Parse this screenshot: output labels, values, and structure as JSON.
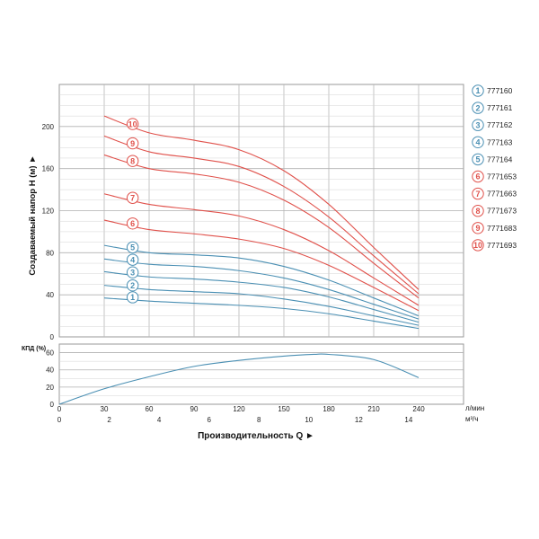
{
  "chart_data": [
    {
      "type": "line",
      "ylabel": "Создаваемый напор H (м) ►",
      "yticks": [
        0,
        40,
        80,
        120,
        160,
        200
      ],
      "ylim": [
        0,
        240
      ],
      "xlim": [
        0,
        270
      ],
      "x_gridlines": [
        30,
        60,
        90,
        120,
        150,
        180,
        210,
        240
      ],
      "grid": true,
      "colors": {
        "blue": "#4a8fb3",
        "red": "#e0504a"
      },
      "series": [
        {
          "name": "777160",
          "marker": "1",
          "color": "#4a8fb3",
          "x": [
            30,
            60,
            90,
            120,
            150,
            180,
            210,
            240
          ],
          "y": [
            37,
            34,
            32,
            30,
            27,
            22,
            15,
            8
          ]
        },
        {
          "name": "777161",
          "marker": "2",
          "color": "#4a8fb3",
          "x": [
            30,
            60,
            90,
            120,
            150,
            180,
            210,
            240
          ],
          "y": [
            49,
            45,
            43,
            41,
            36,
            29,
            20,
            11
          ]
        },
        {
          "name": "777162",
          "marker": "3",
          "color": "#4a8fb3",
          "x": [
            30,
            60,
            90,
            120,
            150,
            180,
            210,
            240
          ],
          "y": [
            62,
            57,
            55,
            52,
            47,
            38,
            26,
            14
          ]
        },
        {
          "name": "777163",
          "marker": "4",
          "color": "#4a8fb3",
          "x": [
            30,
            60,
            90,
            120,
            150,
            180,
            210,
            240
          ],
          "y": [
            74,
            69,
            67,
            63,
            56,
            45,
            31,
            17
          ]
        },
        {
          "name": "777164",
          "marker": "5",
          "color": "#4a8fb3",
          "x": [
            30,
            60,
            90,
            120,
            150,
            180,
            210,
            240
          ],
          "y": [
            87,
            80,
            78,
            75,
            67,
            54,
            37,
            20
          ]
        },
        {
          "name": "7771653",
          "marker": "6",
          "color": "#e0504a",
          "x": [
            30,
            60,
            90,
            120,
            150,
            180,
            210,
            240
          ],
          "y": [
            111,
            102,
            98,
            93,
            84,
            68,
            47,
            25
          ]
        },
        {
          "name": "7771663",
          "marker": "7",
          "color": "#e0504a",
          "x": [
            30,
            60,
            90,
            120,
            150,
            180,
            210,
            240
          ],
          "y": [
            136,
            126,
            121,
            115,
            102,
            82,
            56,
            30
          ]
        },
        {
          "name": "7771673",
          "marker": "8",
          "color": "#e0504a",
          "x": [
            30,
            60,
            90,
            120,
            150,
            180,
            210,
            240
          ],
          "y": [
            173,
            160,
            155,
            147,
            130,
            104,
            70,
            37
          ]
        },
        {
          "name": "7771683",
          "marker": "9",
          "color": "#e0504a",
          "x": [
            30,
            60,
            90,
            120,
            150,
            180,
            210,
            240
          ],
          "y": [
            191,
            176,
            170,
            162,
            143,
            114,
            77,
            41
          ]
        },
        {
          "name": "7771693",
          "marker": "10",
          "color": "#e0504a",
          "x": [
            30,
            60,
            90,
            120,
            150,
            180,
            210,
            240
          ],
          "y": [
            210,
            194,
            187,
            178,
            158,
            126,
            85,
            45
          ]
        }
      ]
    },
    {
      "type": "line",
      "ylabel": "КПД (%)",
      "yticks": [
        0,
        20,
        40,
        60
      ],
      "ylim": [
        0,
        70
      ],
      "xlim": [
        0,
        270
      ],
      "grid": true,
      "series": [
        {
          "color": "#4a8fb3",
          "x": [
            0,
            30,
            60,
            90,
            120,
            150,
            170,
            180,
            210,
            240
          ],
          "y": [
            0,
            18,
            32,
            44,
            51,
            56,
            58,
            58,
            52,
            31
          ]
        }
      ]
    },
    {
      "type": "axes",
      "x_primary": {
        "ticks": [
          0,
          30,
          60,
          90,
          120,
          150,
          180,
          210,
          240
        ],
        "unit": "л/мин"
      },
      "x_secondary": {
        "ticks": [
          0,
          2,
          4,
          6,
          8,
          10,
          12,
          14
        ],
        "unit": "м³/ч"
      },
      "xlabel": "Производительность Q ►"
    }
  ]
}
